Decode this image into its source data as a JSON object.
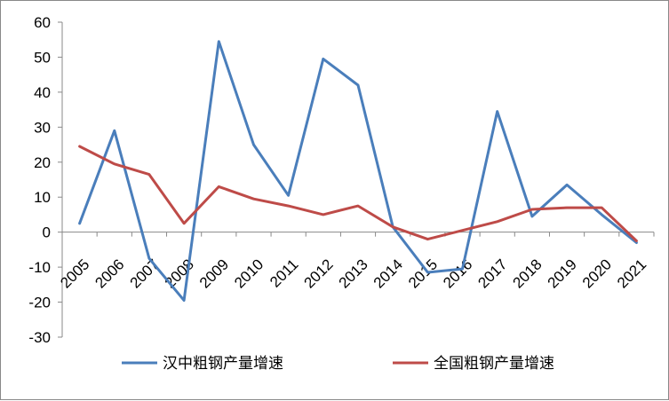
{
  "chart_data": {
    "type": "line",
    "x": [
      "2005",
      "2006",
      "2007",
      "2008",
      "2009",
      "2010",
      "2011",
      "2012",
      "2013",
      "2014",
      "2015",
      "2016",
      "2017",
      "2018",
      "2019",
      "2020",
      "2021"
    ],
    "series": [
      {
        "name": "汉中粗钢产量增速",
        "color": "#4a7ebb",
        "values": [
          2.5,
          29,
          -7.5,
          -19.5,
          54.5,
          25,
          10.5,
          49.5,
          42,
          1.5,
          -11.5,
          -10.5,
          34.5,
          4.5,
          13.5,
          5,
          -3
        ]
      },
      {
        "name": "全国粗钢产量增速",
        "color": "#be4b48",
        "values": [
          24.5,
          19.5,
          16.5,
          2.5,
          13,
          9.5,
          7.5,
          5,
          7.5,
          1.5,
          -2,
          0.5,
          3,
          6.5,
          7,
          7,
          -2.5
        ]
      }
    ],
    "y_ticks": [
      "60",
      "50",
      "40",
      "30",
      "20",
      "10",
      "0",
      "-10",
      "-20",
      "-30"
    ],
    "ylim": [
      -30,
      60
    ],
    "grid": false,
    "legend": "bottom"
  }
}
